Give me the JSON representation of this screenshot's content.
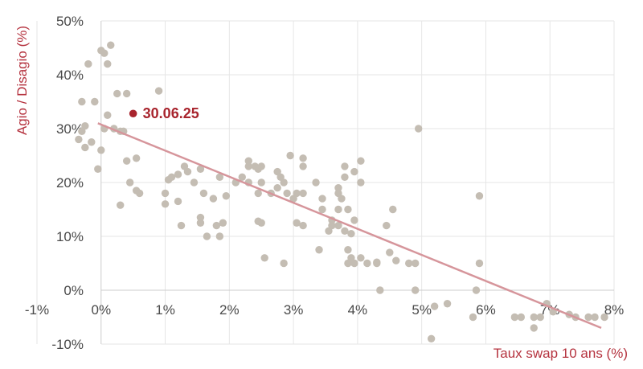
{
  "chart_data": {
    "type": "scatter",
    "xlabel": "Taux swap 10 ans (%)",
    "ylabel": "Agio / Disagio (%)",
    "xlim": [
      -1,
      8
    ],
    "ylim": [
      -10,
      50
    ],
    "x_ticks": [
      -1,
      0,
      1,
      2,
      3,
      4,
      5,
      6,
      7,
      8
    ],
    "y_ticks": [
      -10,
      0,
      10,
      20,
      30,
      40,
      50
    ],
    "x_tick_labels": [
      "-1%",
      "0%",
      "1%",
      "2%",
      "3%",
      "4%",
      "5%",
      "6%",
      "7%",
      "8%"
    ],
    "y_tick_labels": [
      "-10%",
      "0%",
      "10%",
      "20%",
      "30%",
      "40%",
      "50%"
    ],
    "grid": true,
    "colors": {
      "points": "#c4bdb3",
      "trend": "#d6959b",
      "highlight": "#a8242d",
      "axis_label": "#b5333f",
      "grid": "#e6e6e6"
    },
    "series": [
      {
        "points": [
          [
            -0.35,
            28
          ],
          [
            -0.3,
            35
          ],
          [
            -0.25,
            30.5
          ],
          [
            -0.3,
            29.5
          ],
          [
            -0.25,
            26.5
          ],
          [
            -0.2,
            42
          ],
          [
            -0.15,
            27.5
          ],
          [
            -0.05,
            22.5
          ],
          [
            -0.1,
            35
          ],
          [
            0.0,
            44.5
          ],
          [
            0.0,
            26
          ],
          [
            0.05,
            44
          ],
          [
            0.05,
            30
          ],
          [
            0.1,
            42
          ],
          [
            0.1,
            32.5
          ],
          [
            0.15,
            45.5
          ],
          [
            0.2,
            30
          ],
          [
            0.25,
            36.5
          ],
          [
            0.3,
            29.5
          ],
          [
            0.3,
            15.8
          ],
          [
            0.35,
            29.5
          ],
          [
            0.4,
            36.5
          ],
          [
            0.4,
            24
          ],
          [
            0.45,
            20
          ],
          [
            0.55,
            24.5
          ],
          [
            0.55,
            18.5
          ],
          [
            0.6,
            18
          ],
          [
            0.9,
            37
          ],
          [
            1.0,
            18
          ],
          [
            1.0,
            16
          ],
          [
            1.05,
            20.5
          ],
          [
            1.1,
            21
          ],
          [
            1.2,
            21.5
          ],
          [
            1.2,
            16.5
          ],
          [
            1.25,
            12
          ],
          [
            1.3,
            23
          ],
          [
            1.35,
            22
          ],
          [
            1.45,
            20
          ],
          [
            1.55,
            22.5
          ],
          [
            1.55,
            13.5
          ],
          [
            1.55,
            12.5
          ],
          [
            1.6,
            18
          ],
          [
            1.65,
            10
          ],
          [
            1.75,
            17
          ],
          [
            1.8,
            12
          ],
          [
            1.85,
            21
          ],
          [
            1.85,
            10
          ],
          [
            1.9,
            12.5
          ],
          [
            1.95,
            17.5
          ],
          [
            2.1,
            20
          ],
          [
            2.2,
            21
          ],
          [
            2.3,
            24
          ],
          [
            2.3,
            23
          ],
          [
            2.3,
            20
          ],
          [
            2.4,
            23
          ],
          [
            2.45,
            22.5
          ],
          [
            2.45,
            12.8
          ],
          [
            2.5,
            12.5
          ],
          [
            2.5,
            23
          ],
          [
            2.5,
            20
          ],
          [
            2.55,
            6
          ],
          [
            2.45,
            18
          ],
          [
            2.65,
            18
          ],
          [
            2.75,
            22
          ],
          [
            2.75,
            19
          ],
          [
            2.8,
            21
          ],
          [
            2.85,
            20
          ],
          [
            2.85,
            5
          ],
          [
            2.9,
            18
          ],
          [
            2.95,
            25
          ],
          [
            3.0,
            17
          ],
          [
            3.05,
            18
          ],
          [
            3.05,
            12.5
          ],
          [
            3.15,
            24.5
          ],
          [
            3.15,
            23
          ],
          [
            3.15,
            18
          ],
          [
            3.15,
            12
          ],
          [
            3.35,
            20
          ],
          [
            3.4,
            7.5
          ],
          [
            3.45,
            17
          ],
          [
            3.45,
            15
          ],
          [
            3.55,
            11
          ],
          [
            3.6,
            13
          ],
          [
            3.6,
            12
          ],
          [
            3.7,
            19
          ],
          [
            3.7,
            18
          ],
          [
            3.7,
            15
          ],
          [
            3.7,
            12
          ],
          [
            3.75,
            17
          ],
          [
            3.8,
            23
          ],
          [
            3.8,
            21
          ],
          [
            3.8,
            11
          ],
          [
            3.85,
            15
          ],
          [
            3.85,
            7.5
          ],
          [
            3.85,
            5
          ],
          [
            3.9,
            10.5
          ],
          [
            3.9,
            6
          ],
          [
            3.95,
            22
          ],
          [
            3.95,
            13
          ],
          [
            3.95,
            5
          ],
          [
            4.05,
            24
          ],
          [
            4.05,
            20
          ],
          [
            4.05,
            6
          ],
          [
            4.15,
            5
          ],
          [
            4.3,
            5.2
          ],
          [
            4.3,
            5
          ],
          [
            4.35,
            0
          ],
          [
            4.45,
            12
          ],
          [
            4.5,
            7
          ],
          [
            4.55,
            15
          ],
          [
            4.6,
            5.5
          ],
          [
            4.8,
            5
          ],
          [
            4.9,
            5
          ],
          [
            4.9,
            0
          ],
          [
            4.95,
            30
          ],
          [
            5.15,
            -9
          ],
          [
            5.2,
            -3
          ],
          [
            5.4,
            -2.5
          ],
          [
            5.8,
            -5
          ],
          [
            5.85,
            0
          ],
          [
            5.9,
            17.5
          ],
          [
            5.9,
            5
          ],
          [
            6.45,
            -5
          ],
          [
            6.55,
            -5
          ],
          [
            6.75,
            -7
          ],
          [
            6.75,
            -5
          ],
          [
            6.85,
            -5
          ],
          [
            6.95,
            -2.5
          ],
          [
            7.05,
            -4
          ],
          [
            7.3,
            -4.5
          ],
          [
            7.4,
            -5
          ],
          [
            7.6,
            -5
          ],
          [
            7.7,
            -5
          ],
          [
            7.85,
            -5
          ]
        ]
      }
    ],
    "trend_line": {
      "x": [
        -0.05,
        7.8
      ],
      "y": [
        31,
        -7
      ]
    },
    "highlight": {
      "x": 0.5,
      "y": 32.8,
      "label": "30.06.25"
    }
  }
}
